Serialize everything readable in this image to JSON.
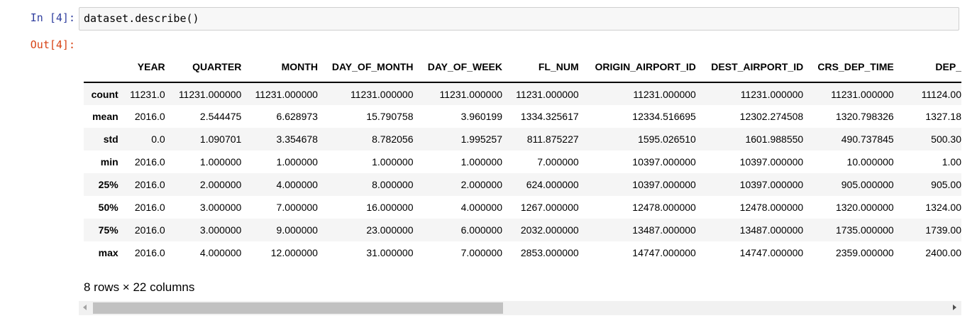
{
  "cell": {
    "in_prompt": "In [4]:",
    "out_prompt": "Out[4]:",
    "code": "dataset.describe()"
  },
  "table": {
    "columns": [
      "",
      "YEAR",
      "QUARTER",
      "MONTH",
      "DAY_OF_MONTH",
      "DAY_OF_WEEK",
      "FL_NUM",
      "ORIGIN_AIRPORT_ID",
      "DEST_AIRPORT_ID",
      "CRS_DEP_TIME",
      "DEP_"
    ],
    "rows": [
      {
        "index": "count",
        "values": [
          "11231.0",
          "11231.000000",
          "11231.000000",
          "11231.000000",
          "11231.000000",
          "11231.000000",
          "11231.000000",
          "11231.000000",
          "11231.000000",
          "11124.00"
        ]
      },
      {
        "index": "mean",
        "values": [
          "2016.0",
          "2.544475",
          "6.628973",
          "15.790758",
          "3.960199",
          "1334.325617",
          "12334.516695",
          "12302.274508",
          "1320.798326",
          "1327.18"
        ]
      },
      {
        "index": "std",
        "values": [
          "0.0",
          "1.090701",
          "3.354678",
          "8.782056",
          "1.995257",
          "811.875227",
          "1595.026510",
          "1601.988550",
          "490.737845",
          "500.30"
        ]
      },
      {
        "index": "min",
        "values": [
          "2016.0",
          "1.000000",
          "1.000000",
          "1.000000",
          "1.000000",
          "7.000000",
          "10397.000000",
          "10397.000000",
          "10.000000",
          "1.00"
        ]
      },
      {
        "index": "25%",
        "values": [
          "2016.0",
          "2.000000",
          "4.000000",
          "8.000000",
          "2.000000",
          "624.000000",
          "10397.000000",
          "10397.000000",
          "905.000000",
          "905.00"
        ]
      },
      {
        "index": "50%",
        "values": [
          "2016.0",
          "3.000000",
          "7.000000",
          "16.000000",
          "4.000000",
          "1267.000000",
          "12478.000000",
          "12478.000000",
          "1320.000000",
          "1324.00"
        ]
      },
      {
        "index": "75%",
        "values": [
          "2016.0",
          "3.000000",
          "9.000000",
          "23.000000",
          "6.000000",
          "2032.000000",
          "13487.000000",
          "13487.000000",
          "1735.000000",
          "1739.00"
        ]
      },
      {
        "index": "max",
        "values": [
          "2016.0",
          "4.000000",
          "12.000000",
          "31.000000",
          "7.000000",
          "2853.000000",
          "14747.000000",
          "14747.000000",
          "2359.000000",
          "2400.00"
        ]
      }
    ],
    "summary": "8 rows × 22 columns"
  },
  "scrollbar": {
    "thumb_fraction_visible": 0.48,
    "thumb_position": 0.0
  },
  "colors": {
    "in_prompt": "#303f9f",
    "out_prompt": "#d84315",
    "input_bg": "#f7f7f7",
    "row_stripe": "#f5f5f5"
  }
}
